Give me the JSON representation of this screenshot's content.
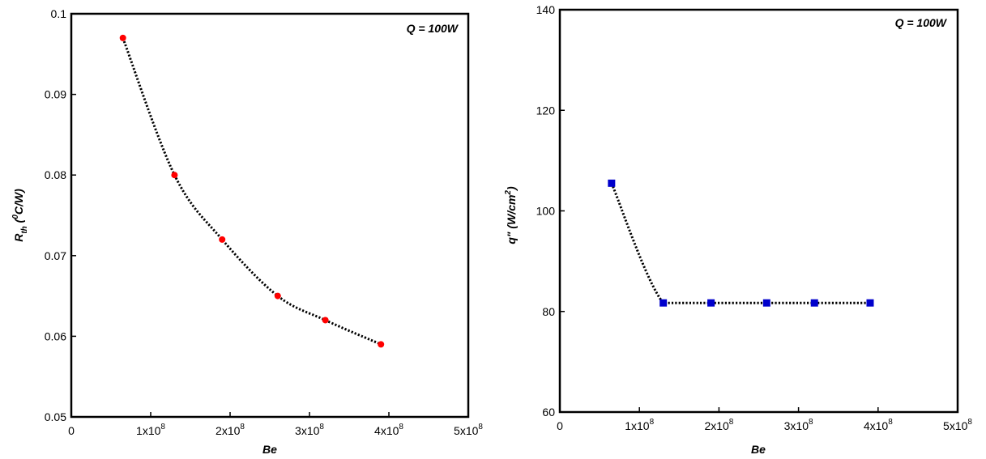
{
  "chart_data": [
    {
      "type": "scatter",
      "annotation": "Q = 100W",
      "xlabel": "Be",
      "ylabel": {
        "base": "R",
        "sub": "th",
        "paren_open": " (",
        "sup": "0",
        "unit": "C/W)"
      },
      "xlim": [
        0,
        500000000
      ],
      "ylim": [
        0.05,
        0.1
      ],
      "xticks": [
        {
          "value": 0,
          "label": "0"
        },
        {
          "value": 100000000,
          "mant": "1x10",
          "exp": "8"
        },
        {
          "value": 200000000,
          "mant": "2x10",
          "exp": "8"
        },
        {
          "value": 300000000,
          "mant": "3x10",
          "exp": "8"
        },
        {
          "value": 400000000,
          "mant": "4x10",
          "exp": "8"
        },
        {
          "value": 500000000,
          "mant": "5x10",
          "exp": "8"
        }
      ],
      "yticks": [
        {
          "value": 0.05,
          "label": "0.05"
        },
        {
          "value": 0.06,
          "label": "0.06"
        },
        {
          "value": 0.07,
          "label": "0.07"
        },
        {
          "value": 0.08,
          "label": "0.08"
        },
        {
          "value": 0.09,
          "label": "0.09"
        },
        {
          "value": 0.1,
          "label": "0.1"
        }
      ],
      "grid": false,
      "series": [
        {
          "marker": "circle",
          "color": "#ff0000",
          "x": [
            65000000,
            130000000,
            190000000,
            260000000,
            320000000,
            390000000
          ],
          "y": [
            0.097,
            0.08,
            0.072,
            0.065,
            0.062,
            0.059
          ]
        }
      ],
      "fit_line": {
        "style": "dotted",
        "color": "#000000"
      }
    },
    {
      "type": "scatter",
      "annotation": "Q = 100W",
      "xlabel": "Be",
      "ylabel": {
        "base": "q\" (W/cm",
        "sup": "2",
        "unit": ")"
      },
      "xlim": [
        0,
        500000000
      ],
      "ylim": [
        60,
        140
      ],
      "xticks": [
        {
          "value": 0,
          "label": "0"
        },
        {
          "value": 100000000,
          "mant": "1x10",
          "exp": "8"
        },
        {
          "value": 200000000,
          "mant": "2x10",
          "exp": "8"
        },
        {
          "value": 300000000,
          "mant": "3x10",
          "exp": "8"
        },
        {
          "value": 400000000,
          "mant": "4x10",
          "exp": "8"
        },
        {
          "value": 500000000,
          "mant": "5x10",
          "exp": "8"
        }
      ],
      "yticks": [
        {
          "value": 60,
          "label": "60"
        },
        {
          "value": 80,
          "label": "80"
        },
        {
          "value": 100,
          "label": "100"
        },
        {
          "value": 120,
          "label": "120"
        },
        {
          "value": 140,
          "label": "140"
        }
      ],
      "grid": false,
      "series": [
        {
          "marker": "square",
          "color": "#0000cc",
          "x": [
            65000000,
            130000000,
            190000000,
            260000000,
            320000000,
            390000000
          ],
          "y": [
            105.5,
            81.7,
            81.7,
            81.7,
            81.7,
            81.7
          ]
        }
      ],
      "fit_line": {
        "style": "dotted",
        "color": "#000000"
      }
    }
  ]
}
